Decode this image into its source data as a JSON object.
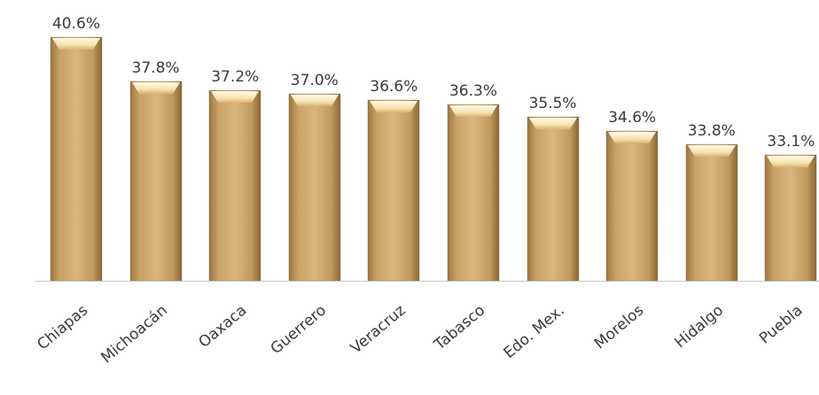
{
  "chart_data": {
    "type": "bar",
    "categories": [
      "Chiapas",
      "Michoacán",
      "Oaxaca",
      "Guerrero",
      "Veracruz",
      "Tabasco",
      "Edo. Mex.",
      "Morelos",
      "Hidalgo",
      "Puebla"
    ],
    "values": [
      40.6,
      37.8,
      37.2,
      37.0,
      36.6,
      36.3,
      35.5,
      34.6,
      33.8,
      33.1
    ],
    "value_labels": [
      "40.6%",
      "37.8%",
      "37.2%",
      "37.0%",
      "36.6%",
      "36.3%",
      "35.5%",
      "34.6%",
      "33.8%",
      "33.1%"
    ],
    "title": "",
    "xlabel": "",
    "ylabel": "",
    "grid": false,
    "legend": "none",
    "colors": {
      "bar_light": "#d8b57a",
      "bar_mid": "#c29a5d",
      "bar_dark": "#8c6a38",
      "bar_highlight": "#fff6dc",
      "baseline": "#c8c8c8",
      "text": "#3a3a3a"
    }
  }
}
